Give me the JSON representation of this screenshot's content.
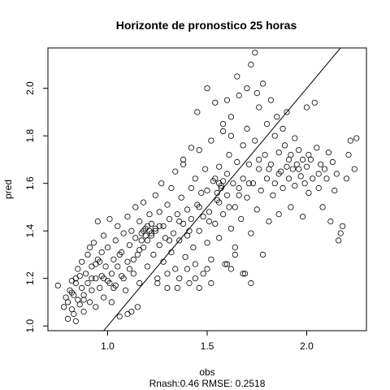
{
  "chart_data": {
    "type": "scatter",
    "title": "Horizonte de pronostico 25 horas",
    "xlabel": "obs",
    "ylabel": "pred",
    "subtitle": "Rnash:0.46 RMSE: 0.2518",
    "xlim": [
      0.7,
      2.3
    ],
    "ylim": [
      0.98,
      2.17
    ],
    "x_ticks": [
      1.0,
      1.5,
      2.0
    ],
    "x_tick_labels": [
      "1.0",
      "1.5",
      "2.0"
    ],
    "y_ticks": [
      1.0,
      1.2,
      1.4,
      1.6,
      1.8,
      2.0
    ],
    "y_tick_labels": [
      "1.0",
      "1.2",
      "1.4",
      "1.6",
      "1.8",
      "2.0"
    ],
    "reference_line": {
      "slope": 1,
      "intercept": 0
    },
    "grid": false,
    "point_style": "open-circle",
    "points": [
      [
        0.75,
        1.17
      ],
      [
        0.78,
        1.08
      ],
      [
        0.79,
        1.12
      ],
      [
        0.8,
        1.03
      ],
      [
        0.8,
        1.1
      ],
      [
        0.81,
        1.15
      ],
      [
        0.82,
        1.19
      ],
      [
        0.82,
        1.07
      ],
      [
        0.83,
        1.13
      ],
      [
        0.83,
        1.05
      ],
      [
        0.84,
        1.02
      ],
      [
        0.84,
        1.2
      ],
      [
        0.85,
        1.11
      ],
      [
        0.85,
        1.24
      ],
      [
        0.86,
        1.09
      ],
      [
        0.87,
        1.16
      ],
      [
        0.87,
        1.27
      ],
      [
        0.88,
        1.13
      ],
      [
        0.88,
        1.06
      ],
      [
        0.89,
        1.22
      ],
      [
        0.9,
        1.18
      ],
      [
        0.9,
        1.3
      ],
      [
        0.91,
        1.1
      ],
      [
        0.92,
        1.25
      ],
      [
        0.92,
        1.15
      ],
      [
        0.93,
        1.35
      ],
      [
        0.94,
        1.2
      ],
      [
        0.94,
        1.08
      ],
      [
        0.95,
        1.28
      ],
      [
        0.95,
        1.44
      ],
      [
        0.96,
        1.16
      ],
      [
        0.97,
        1.31
      ],
      [
        0.97,
        1.21
      ],
      [
        0.98,
        1.12
      ],
      [
        0.98,
        1.38
      ],
      [
        0.99,
        1.25
      ],
      [
        1.0,
        1.19
      ],
      [
        1.0,
        1.33
      ],
      [
        1.01,
        1.45
      ],
      [
        1.02,
        1.22
      ],
      [
        1.02,
        1.1
      ],
      [
        1.03,
        1.28
      ],
      [
        1.04,
        1.36
      ],
      [
        1.04,
        1.17
      ],
      [
        1.05,
        1.25
      ],
      [
        1.05,
        1.42
      ],
      [
        1.06,
        1.04
      ],
      [
        1.07,
        1.31
      ],
      [
        1.08,
        1.2
      ],
      [
        1.08,
        1.39
      ],
      [
        1.09,
        1.15
      ],
      [
        1.1,
        1.46
      ],
      [
        1.1,
        1.27
      ],
      [
        1.11,
        1.34
      ],
      [
        1.12,
        1.06
      ],
      [
        1.12,
        1.4
      ],
      [
        1.13,
        1.22
      ],
      [
        1.14,
        1.37
      ],
      [
        1.14,
        1.5
      ],
      [
        1.15,
        1.3
      ],
      [
        1.16,
        1.44
      ],
      [
        1.16,
        1.18
      ],
      [
        1.17,
        1.39
      ],
      [
        1.18,
        1.33
      ],
      [
        1.18,
        1.52
      ],
      [
        1.19,
        1.41
      ],
      [
        1.2,
        1.36
      ],
      [
        1.2,
        1.25
      ],
      [
        1.21,
        1.47
      ],
      [
        1.22,
        1.38
      ],
      [
        1.22,
        1.43
      ],
      [
        1.23,
        1.3
      ],
      [
        1.24,
        1.55
      ],
      [
        1.24,
        1.4
      ],
      [
        1.25,
        1.2
      ],
      [
        1.26,
        1.48
      ],
      [
        1.26,
        1.34
      ],
      [
        1.27,
        1.6
      ],
      [
        1.28,
        1.42
      ],
      [
        1.28,
        1.27
      ],
      [
        1.29,
        1.37
      ],
      [
        1.3,
        1.51
      ],
      [
        1.3,
        1.16
      ],
      [
        1.31,
        1.45
      ],
      [
        1.32,
        1.31
      ],
      [
        1.32,
        1.58
      ],
      [
        1.33,
        1.39
      ],
      [
        1.34,
        1.24
      ],
      [
        1.34,
        1.65
      ],
      [
        1.35,
        1.47
      ],
      [
        1.36,
        1.36
      ],
      [
        1.36,
        1.2
      ],
      [
        1.37,
        1.54
      ],
      [
        1.38,
        1.43
      ],
      [
        1.38,
        1.7
      ],
      [
        1.39,
        1.29
      ],
      [
        1.4,
        1.49
      ],
      [
        1.4,
        1.38
      ],
      [
        1.41,
        1.18
      ],
      [
        1.42,
        1.58
      ],
      [
        1.42,
        1.45
      ],
      [
        1.43,
        1.33
      ],
      [
        1.44,
        1.62
      ],
      [
        1.44,
        1.26
      ],
      [
        1.45,
        1.51
      ],
      [
        1.46,
        1.4
      ],
      [
        1.46,
        1.74
      ],
      [
        1.47,
        1.56
      ],
      [
        1.48,
        1.22
      ],
      [
        1.48,
        1.46
      ],
      [
        1.49,
        1.66
      ],
      [
        1.5,
        1.35
      ],
      [
        1.5,
        1.57
      ],
      [
        1.51,
        1.48
      ],
      [
        1.52,
        1.78
      ],
      [
        1.52,
        1.28
      ],
      [
        1.53,
        1.61
      ],
      [
        1.54,
        1.43
      ],
      [
        1.54,
        1.94
      ],
      [
        1.55,
        1.53
      ],
      [
        1.56,
        1.67
      ],
      [
        1.56,
        1.37
      ],
      [
        1.57,
        1.59
      ],
      [
        1.58,
        1.82
      ],
      [
        1.58,
        1.47
      ],
      [
        1.59,
        1.26
      ],
      [
        1.6,
        1.64
      ],
      [
        1.6,
        1.55
      ],
      [
        1.61,
        1.72
      ],
      [
        1.62,
        1.41
      ],
      [
        1.62,
        1.88
      ],
      [
        1.63,
        1.6
      ],
      [
        1.64,
        1.5
      ],
      [
        1.64,
        1.33
      ],
      [
        1.65,
        1.69
      ],
      [
        1.66,
        1.58
      ],
      [
        1.66,
        1.97
      ],
      [
        1.67,
        1.45
      ],
      [
        1.68,
        1.76
      ],
      [
        1.68,
        1.62
      ],
      [
        1.69,
        1.22
      ],
      [
        1.7,
        1.54
      ],
      [
        1.7,
        1.83
      ],
      [
        1.71,
        1.68
      ],
      [
        1.72,
        2.1
      ],
      [
        1.72,
        1.39
      ],
      [
        1.73,
        1.6
      ],
      [
        1.74,
        1.78
      ],
      [
        1.74,
        2.15
      ],
      [
        1.75,
        1.49
      ],
      [
        1.76,
        1.66
      ],
      [
        1.76,
        1.92
      ],
      [
        1.77,
        1.57
      ],
      [
        1.78,
        2.02
      ],
      [
        1.78,
        1.3
      ],
      [
        1.79,
        1.72
      ],
      [
        1.8,
        1.62
      ],
      [
        1.8,
        1.85
      ],
      [
        1.81,
        1.44
      ],
      [
        1.82,
        1.95
      ],
      [
        1.82,
        1.68
      ],
      [
        1.83,
        1.55
      ],
      [
        1.84,
        1.8
      ],
      [
        1.84,
        1.6
      ],
      [
        1.85,
        1.88
      ],
      [
        1.86,
        1.47
      ],
      [
        1.86,
        1.73
      ],
      [
        1.87,
        1.65
      ],
      [
        1.88,
        1.83
      ],
      [
        1.88,
        1.58
      ],
      [
        1.89,
        1.76
      ],
      [
        1.9,
        1.67
      ],
      [
        1.9,
        1.9
      ],
      [
        1.91,
        1.62
      ],
      [
        1.92,
        1.72
      ],
      [
        1.92,
        1.5
      ],
      [
        1.93,
        1.66
      ],
      [
        1.94,
        1.79
      ],
      [
        1.94,
        1.59
      ],
      [
        1.95,
        1.68
      ],
      [
        1.96,
        1.74
      ],
      [
        1.97,
        1.63
      ],
      [
        1.98,
        1.46
      ],
      [
        1.98,
        1.7
      ],
      [
        1.99,
        1.6
      ],
      [
        2.0,
        1.92
      ],
      [
        2.0,
        1.67
      ],
      [
        2.01,
        1.56
      ],
      [
        2.02,
        1.7
      ],
      [
        2.03,
        1.62
      ],
      [
        2.04,
        1.94
      ],
      [
        2.05,
        1.75
      ],
      [
        2.06,
        1.58
      ],
      [
        2.07,
        1.68
      ],
      [
        2.08,
        1.5
      ],
      [
        2.09,
        1.66
      ],
      [
        2.1,
        1.62
      ],
      [
        2.11,
        1.73
      ],
      [
        2.12,
        1.44
      ],
      [
        2.13,
        1.69
      ],
      [
        2.14,
        1.57
      ],
      [
        2.15,
        1.64
      ],
      [
        2.16,
        1.36
      ],
      [
        2.18,
        1.42
      ],
      [
        2.2,
        1.62
      ],
      [
        2.21,
        1.72
      ],
      [
        2.22,
        1.78
      ],
      [
        2.24,
        1.66
      ],
      [
        2.25,
        1.79
      ],
      [
        2.17,
        1.39
      ],
      [
        0.86,
        1.21
      ],
      [
        0.91,
        1.33
      ],
      [
        0.96,
        1.27
      ],
      [
        1.01,
        1.18
      ],
      [
        1.06,
        1.3
      ],
      [
        1.11,
        1.24
      ],
      [
        1.16,
        1.32
      ],
      [
        1.21,
        1.4
      ],
      [
        1.26,
        1.42
      ],
      [
        1.31,
        1.36
      ],
      [
        1.36,
        1.44
      ],
      [
        1.41,
        1.4
      ],
      [
        1.46,
        1.5
      ],
      [
        1.51,
        1.44
      ],
      [
        1.56,
        1.52
      ],
      [
        1.61,
        1.5
      ],
      [
        1.66,
        1.55
      ],
      [
        1.71,
        1.6
      ],
      [
        1.76,
        1.7
      ],
      [
        1.81,
        1.66
      ],
      [
        1.86,
        1.64
      ],
      [
        1.91,
        1.7
      ],
      [
        1.96,
        1.66
      ],
      [
        2.01,
        1.72
      ],
      [
        2.06,
        1.64
      ],
      [
        1.18,
        1.4
      ],
      [
        1.2,
        1.42
      ],
      [
        1.22,
        1.39
      ],
      [
        1.24,
        1.41
      ],
      [
        1.19,
        1.38
      ],
      [
        1.56,
        1.6
      ],
      [
        1.57,
        1.58
      ],
      [
        1.55,
        1.56
      ],
      [
        1.58,
        1.61
      ],
      [
        1.54,
        1.62
      ],
      [
        1.6,
        1.26
      ],
      [
        1.62,
        1.24
      ],
      [
        1.64,
        1.3
      ],
      [
        1.68,
        1.22
      ],
      [
        1.72,
        1.18
      ],
      [
        1.44,
        1.2
      ],
      [
        1.46,
        1.16
      ],
      [
        1.5,
        1.24
      ],
      [
        1.52,
        1.18
      ],
      [
        1.4,
        1.24
      ],
      [
        1.35,
        1.16
      ],
      [
        1.3,
        1.22
      ],
      [
        1.25,
        1.18
      ],
      [
        1.1,
        1.05
      ],
      [
        1.15,
        1.08
      ],
      [
        1.5,
        2.0
      ],
      [
        1.6,
        1.95
      ],
      [
        1.65,
        2.05
      ],
      [
        1.7,
        2.0
      ],
      [
        1.75,
        1.98
      ],
      [
        1.62,
        1.8
      ],
      [
        1.58,
        1.85
      ],
      [
        1.45,
        1.9
      ],
      [
        1.42,
        1.75
      ],
      [
        1.38,
        1.68
      ],
      [
        0.82,
        1.14
      ],
      [
        0.84,
        1.18
      ],
      [
        0.88,
        1.11
      ],
      [
        0.92,
        1.2
      ],
      [
        0.94,
        1.26
      ],
      [
        0.98,
        1.2
      ],
      [
        1.03,
        1.16
      ],
      [
        1.07,
        1.21
      ],
      [
        1.13,
        1.28
      ],
      [
        1.17,
        1.36
      ]
    ]
  }
}
